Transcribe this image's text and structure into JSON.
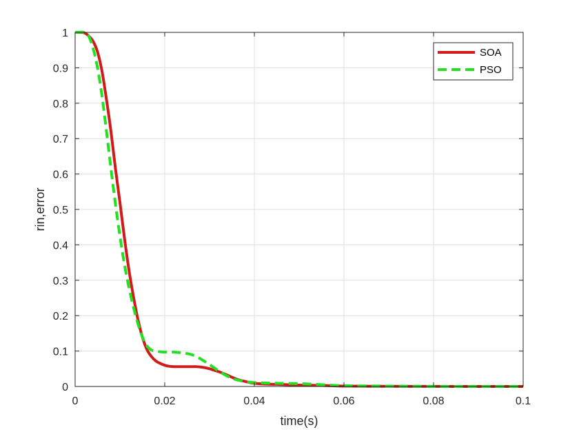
{
  "chart_data": {
    "type": "line",
    "title": "",
    "xlabel": "time(s)",
    "ylabel": "rin,error",
    "xlim": [
      0,
      0.1
    ],
    "ylim": [
      0,
      1
    ],
    "x_ticks": [
      0,
      0.02,
      0.04,
      0.06,
      0.08,
      0.1
    ],
    "x_tick_labels": [
      "0",
      "0.02",
      "0.04",
      "0.06",
      "0.08",
      "0.1"
    ],
    "y_ticks": [
      0,
      0.1,
      0.2,
      0.3,
      0.4,
      0.5,
      0.6,
      0.7,
      0.8,
      0.9,
      1
    ],
    "y_tick_labels": [
      "0",
      "0.1",
      "0.2",
      "0.3",
      "0.4",
      "0.5",
      "0.6",
      "0.7",
      "0.8",
      "0.9",
      "1"
    ],
    "grid": true,
    "legend_position": "top-right",
    "series": [
      {
        "name": "SOA",
        "color": "#d11a1a",
        "style": "solid",
        "points": [
          [
            0.0,
            1.0
          ],
          [
            0.002,
            0.999
          ],
          [
            0.003,
            0.99
          ],
          [
            0.004,
            0.975
          ],
          [
            0.005,
            0.945
          ],
          [
            0.006,
            0.89
          ],
          [
            0.007,
            0.81
          ],
          [
            0.008,
            0.72
          ],
          [
            0.009,
            0.615
          ],
          [
            0.01,
            0.52
          ],
          [
            0.011,
            0.42
          ],
          [
            0.012,
            0.33
          ],
          [
            0.013,
            0.255
          ],
          [
            0.014,
            0.19
          ],
          [
            0.015,
            0.14
          ],
          [
            0.016,
            0.105
          ],
          [
            0.017,
            0.085
          ],
          [
            0.018,
            0.072
          ],
          [
            0.019,
            0.065
          ],
          [
            0.02,
            0.06
          ],
          [
            0.021,
            0.057
          ],
          [
            0.022,
            0.056
          ],
          [
            0.023,
            0.056
          ],
          [
            0.024,
            0.056
          ],
          [
            0.025,
            0.056
          ],
          [
            0.026,
            0.056
          ],
          [
            0.027,
            0.056
          ],
          [
            0.028,
            0.055
          ],
          [
            0.029,
            0.053
          ],
          [
            0.03,
            0.05
          ],
          [
            0.031,
            0.046
          ],
          [
            0.032,
            0.042
          ],
          [
            0.033,
            0.037
          ],
          [
            0.034,
            0.032
          ],
          [
            0.035,
            0.026
          ],
          [
            0.036,
            0.021
          ],
          [
            0.037,
            0.017
          ],
          [
            0.038,
            0.014
          ],
          [
            0.039,
            0.011
          ],
          [
            0.04,
            0.009
          ],
          [
            0.042,
            0.007
          ],
          [
            0.045,
            0.006
          ],
          [
            0.05,
            0.004
          ],
          [
            0.055,
            0.003
          ],
          [
            0.06,
            0.001
          ],
          [
            0.07,
            0.0005
          ],
          [
            0.08,
            0.0002
          ],
          [
            0.09,
            0.0
          ],
          [
            0.1,
            0.0
          ]
        ]
      },
      {
        "name": "PSO",
        "color": "#22e022",
        "style": "dashed",
        "points": [
          [
            0.0,
            1.0
          ],
          [
            0.002,
            1.0
          ],
          [
            0.003,
            0.99
          ],
          [
            0.004,
            0.955
          ],
          [
            0.005,
            0.9
          ],
          [
            0.006,
            0.82
          ],
          [
            0.007,
            0.72
          ],
          [
            0.008,
            0.615
          ],
          [
            0.009,
            0.515
          ],
          [
            0.01,
            0.425
          ],
          [
            0.011,
            0.345
          ],
          [
            0.012,
            0.28
          ],
          [
            0.013,
            0.225
          ],
          [
            0.014,
            0.178
          ],
          [
            0.015,
            0.14
          ],
          [
            0.016,
            0.115
          ],
          [
            0.017,
            0.103
          ],
          [
            0.018,
            0.1
          ],
          [
            0.019,
            0.098
          ],
          [
            0.02,
            0.097
          ],
          [
            0.021,
            0.097
          ],
          [
            0.022,
            0.097
          ],
          [
            0.023,
            0.096
          ],
          [
            0.024,
            0.095
          ],
          [
            0.025,
            0.093
          ],
          [
            0.026,
            0.09
          ],
          [
            0.027,
            0.085
          ],
          [
            0.028,
            0.078
          ],
          [
            0.029,
            0.07
          ],
          [
            0.03,
            0.062
          ],
          [
            0.031,
            0.053
          ],
          [
            0.032,
            0.044
          ],
          [
            0.033,
            0.036
          ],
          [
            0.034,
            0.029
          ],
          [
            0.035,
            0.023
          ],
          [
            0.036,
            0.019
          ],
          [
            0.037,
            0.016
          ],
          [
            0.038,
            0.014
          ],
          [
            0.039,
            0.012
          ],
          [
            0.04,
            0.011
          ],
          [
            0.042,
            0.01
          ],
          [
            0.045,
            0.009
          ],
          [
            0.05,
            0.008
          ],
          [
            0.055,
            0.005
          ],
          [
            0.06,
            0.002
          ],
          [
            0.07,
            0.001
          ],
          [
            0.08,
            0.0
          ],
          [
            0.09,
            0.0
          ],
          [
            0.1,
            0.0
          ]
        ]
      }
    ]
  }
}
